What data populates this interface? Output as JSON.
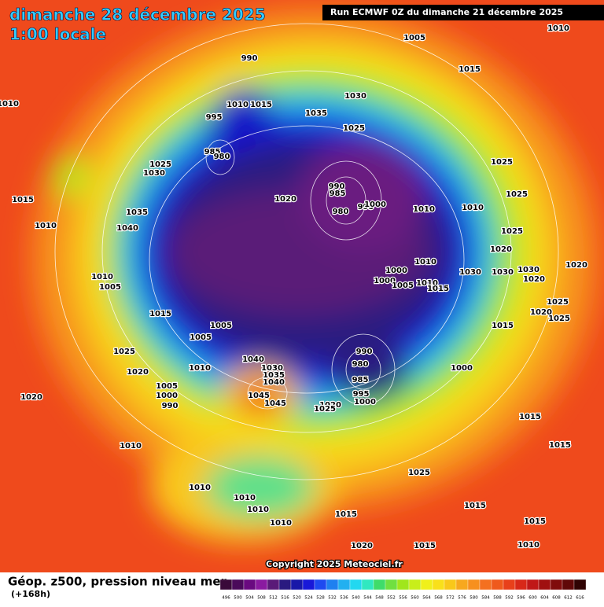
{
  "header": {
    "date": "dimanche 28 décembre 2025",
    "time": "1:00 locale",
    "run": "Run ECMWF 0Z du dimanche 21 décembre 2025"
  },
  "copyright": "Copyright 2025 Meteociel.fr",
  "legend": {
    "title": "Géop. z500, pression niveau mer",
    "lead": "(+168h)",
    "values": [
      496,
      500,
      504,
      508,
      512,
      516,
      520,
      524,
      528,
      532,
      536,
      540,
      544,
      548,
      552,
      556,
      560,
      564,
      568,
      572,
      576,
      580,
      584,
      588,
      592,
      596,
      600,
      604,
      608,
      612,
      616
    ]
  },
  "isobar_labels": [
    "1005",
    "1010",
    "1015",
    "1030",
    "1035",
    "1025",
    "990",
    "995",
    "1010",
    "1015",
    "985",
    "980",
    "1025",
    "1030",
    "1020",
    "990",
    "985",
    "980",
    "995",
    "1000",
    "1010",
    "1010",
    "1025",
    "1025",
    "1025",
    "1020",
    "1015",
    "1010",
    "1035",
    "1040",
    "1010",
    "1005",
    "1015",
    "1005",
    "1005",
    "1000",
    "1000",
    "1005",
    "1010",
    "1010",
    "1015",
    "1030",
    "1030",
    "1030",
    "1020",
    "1025",
    "1020",
    "1025",
    "1020",
    "1015",
    "1025",
    "1020",
    "1010",
    "1040",
    "1030",
    "1035",
    "1040",
    "990",
    "980",
    "985",
    "995",
    "1000",
    "1000",
    "1045",
    "1045",
    "1020",
    "1025",
    "1005",
    "1000",
    "990",
    "1020",
    "1010",
    "1010",
    "1015",
    "1015",
    "1025",
    "1010",
    "1010",
    "1010",
    "1010",
    "1015",
    "1015",
    "1015",
    "1010",
    "1020",
    "1015"
  ]
}
